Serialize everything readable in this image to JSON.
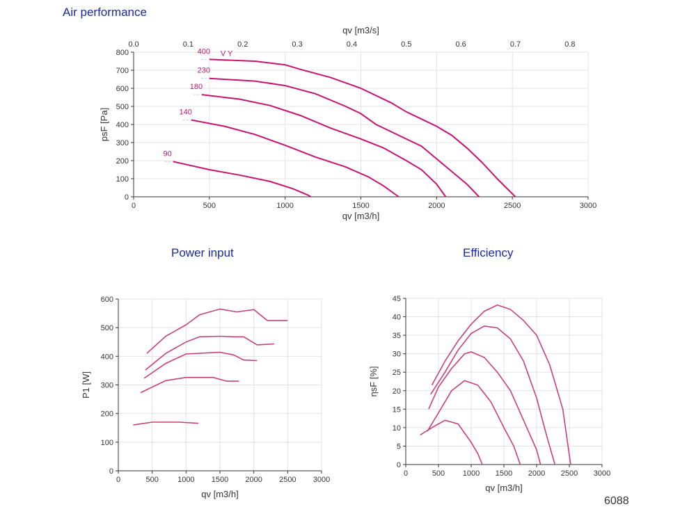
{
  "page_code": "6088",
  "chart_data": [
    {
      "type": "line",
      "title": "Air performance",
      "xlabel": "qv [m3/h]",
      "ylabel": "psF [Pa]",
      "xlim": [
        0,
        3000
      ],
      "ylim": [
        0,
        800
      ],
      "xticks": [
        0,
        500,
        1000,
        1500,
        2000,
        2500,
        3000
      ],
      "yticks": [
        0,
        100,
        200,
        300,
        400,
        500,
        600,
        700,
        800
      ],
      "x2label": "qv [m3/s]",
      "x2ticks": [
        "0.0",
        "0.1",
        "0.2",
        "0.3",
        "0.4",
        "0.5",
        "0.6",
        "0.7",
        "0.8"
      ],
      "grid": true,
      "color": "#c8136f",
      "extra_label": "V Y",
      "series": [
        {
          "name": "400",
          "points": [
            [
              500,
              760
            ],
            [
              800,
              750
            ],
            [
              1000,
              730
            ],
            [
              1100,
              705
            ],
            [
              1300,
              660
            ],
            [
              1500,
              600
            ],
            [
              1700,
              520
            ],
            [
              1800,
              470
            ],
            [
              1900,
              430
            ],
            [
              2000,
              390
            ],
            [
              2100,
              340
            ],
            [
              2200,
              270
            ],
            [
              2300,
              190
            ],
            [
              2400,
              100
            ],
            [
              2520,
              0
            ]
          ]
        },
        {
          "name": "230",
          "points": [
            [
              500,
              655
            ],
            [
              800,
              640
            ],
            [
              1000,
              615
            ],
            [
              1200,
              570
            ],
            [
              1400,
              500
            ],
            [
              1500,
              460
            ],
            [
              1600,
              400
            ],
            [
              1750,
              340
            ],
            [
              1900,
              280
            ],
            [
              2000,
              210
            ],
            [
              2100,
              140
            ],
            [
              2200,
              70
            ],
            [
              2280,
              0
            ]
          ]
        },
        {
          "name": "180",
          "points": [
            [
              450,
              565
            ],
            [
              700,
              540
            ],
            [
              900,
              505
            ],
            [
              1100,
              450
            ],
            [
              1300,
              380
            ],
            [
              1500,
              320
            ],
            [
              1650,
              270
            ],
            [
              1800,
              200
            ],
            [
              1900,
              150
            ],
            [
              2000,
              70
            ],
            [
              2060,
              0
            ]
          ]
        },
        {
          "name": "140",
          "points": [
            [
              380,
              425
            ],
            [
              600,
              390
            ],
            [
              800,
              345
            ],
            [
              1000,
              285
            ],
            [
              1200,
              220
            ],
            [
              1400,
              165
            ],
            [
              1550,
              110
            ],
            [
              1650,
              60
            ],
            [
              1750,
              0
            ]
          ]
        },
        {
          "name": "90",
          "points": [
            [
              260,
              195
            ],
            [
              500,
              150
            ],
            [
              700,
              120
            ],
            [
              900,
              85
            ],
            [
              1050,
              45
            ],
            [
              1150,
              10
            ],
            [
              1170,
              0
            ]
          ]
        }
      ]
    },
    {
      "type": "line",
      "title": "Power input",
      "xlabel": "qv [m3/h]",
      "ylabel": "P1 [W]",
      "xlim": [
        0,
        3000
      ],
      "ylim": [
        0,
        600
      ],
      "xticks": [
        0,
        500,
        1000,
        1500,
        2000,
        2500,
        3000
      ],
      "yticks": [
        0,
        100,
        200,
        300,
        400,
        500,
        600
      ],
      "grid": true,
      "color": "#c8407a",
      "series": [
        {
          "points": [
            [
              420,
              410
            ],
            [
              700,
              470
            ],
            [
              1000,
              510
            ],
            [
              1200,
              545
            ],
            [
              1500,
              565
            ],
            [
              1750,
              555
            ],
            [
              2000,
              563
            ],
            [
              2200,
              525
            ],
            [
              2500,
              525
            ]
          ]
        },
        {
          "points": [
            [
              400,
              352
            ],
            [
              700,
              410
            ],
            [
              1000,
              450
            ],
            [
              1200,
              468
            ],
            [
              1500,
              470
            ],
            [
              1700,
              468
            ],
            [
              1850,
              468
            ],
            [
              2050,
              440
            ],
            [
              2300,
              443
            ]
          ]
        },
        {
          "points": [
            [
              380,
              323
            ],
            [
              700,
              375
            ],
            [
              1000,
              408
            ],
            [
              1500,
              414
            ],
            [
              1700,
              405
            ],
            [
              1850,
              387
            ],
            [
              2050,
              385
            ]
          ]
        },
        {
          "points": [
            [
              330,
              273
            ],
            [
              700,
              315
            ],
            [
              1000,
              326
            ],
            [
              1400,
              326
            ],
            [
              1600,
              313
            ],
            [
              1780,
              313
            ]
          ]
        },
        {
          "points": [
            [
              220,
              160
            ],
            [
              500,
              170
            ],
            [
              900,
              170
            ],
            [
              1180,
              166
            ]
          ]
        }
      ]
    },
    {
      "type": "line",
      "title": "Efficiency",
      "xlabel": "qv [m3/h]",
      "ylabel": "ηsF [%]",
      "xlim": [
        0,
        3000
      ],
      "ylim": [
        0,
        45
      ],
      "xticks": [
        0,
        500,
        1000,
        1500,
        2000,
        2500,
        3000
      ],
      "yticks": [
        0,
        5,
        10,
        15,
        20,
        25,
        30,
        35,
        40,
        45
      ],
      "grid": true,
      "color": "#c8407a",
      "series": [
        {
          "points": [
            [
              400,
              21.5
            ],
            [
              600,
              28
            ],
            [
              800,
              33.5
            ],
            [
              1000,
              38
            ],
            [
              1200,
              41.5
            ],
            [
              1400,
              43.2
            ],
            [
              1600,
              42
            ],
            [
              1800,
              39
            ],
            [
              2000,
              35
            ],
            [
              2200,
              27
            ],
            [
              2400,
              15
            ],
            [
              2520,
              0
            ]
          ]
        },
        {
          "points": [
            [
              380,
              19
            ],
            [
              600,
              25
            ],
            [
              800,
              31
            ],
            [
              1000,
              35.5
            ],
            [
              1200,
              37.5
            ],
            [
              1400,
              37
            ],
            [
              1600,
              34
            ],
            [
              1800,
              28
            ],
            [
              2000,
              18
            ],
            [
              2150,
              8
            ],
            [
              2280,
              0
            ]
          ]
        },
        {
          "points": [
            [
              350,
              15
            ],
            [
              500,
              21
            ],
            [
              700,
              26
            ],
            [
              900,
              30
            ],
            [
              1000,
              30.5
            ],
            [
              1200,
              29
            ],
            [
              1400,
              25
            ],
            [
              1600,
              20
            ],
            [
              1800,
              12
            ],
            [
              2000,
              4
            ],
            [
              2060,
              0
            ]
          ]
        },
        {
          "points": [
            [
              330,
              9
            ],
            [
              500,
              14
            ],
            [
              700,
              20
            ],
            [
              900,
              22.7
            ],
            [
              1100,
              21.5
            ],
            [
              1300,
              17
            ],
            [
              1500,
              10
            ],
            [
              1650,
              5
            ],
            [
              1750,
              0
            ]
          ]
        },
        {
          "points": [
            [
              220,
              8
            ],
            [
              400,
              10
            ],
            [
              600,
              12
            ],
            [
              800,
              11
            ],
            [
              1000,
              6
            ],
            [
              1100,
              3
            ],
            [
              1170,
              0
            ]
          ]
        }
      ]
    }
  ]
}
